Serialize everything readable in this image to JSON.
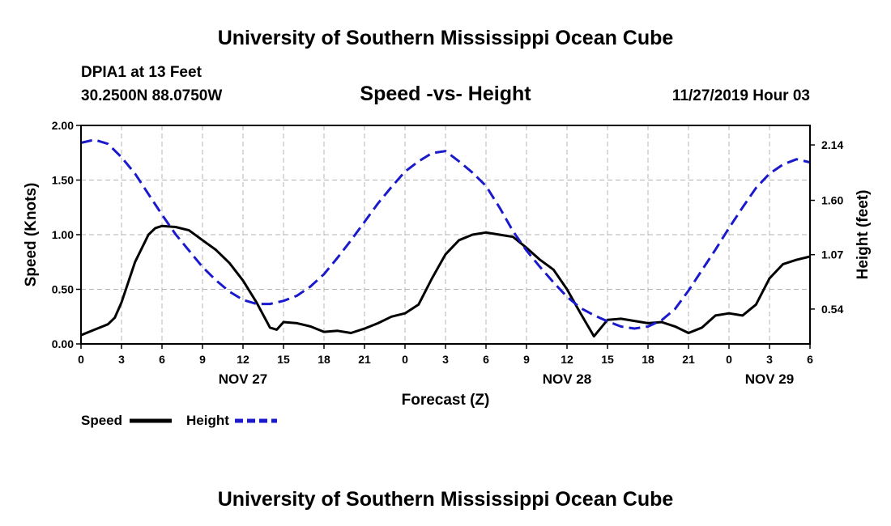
{
  "header": {
    "org_title": "University of Southern Mississippi Ocean Cube",
    "station": "DPIA1 at 13 Feet",
    "coords": "30.2500N 88.0750W",
    "chart_title": "Speed -vs- Height",
    "date_hour": "11/27/2019 Hour 03"
  },
  "footer": {
    "org_title": "University of Southern Mississippi Ocean Cube"
  },
  "colors": {
    "speed": "#000000",
    "height": "#1a1acc",
    "grid": "#b4b4b4"
  },
  "chart_data": {
    "type": "line",
    "title": "Speed -vs- Height",
    "xlabel": "Forecast (Z)",
    "ylabel": "Speed (Knots)",
    "y2label": "Height (feet)",
    "x_unit": "forecast hours",
    "xlim": [
      0,
      54
    ],
    "ylim": [
      0,
      2
    ],
    "y2lim": [
      0.2,
      2.33
    ],
    "x_ticks": [
      0,
      3,
      6,
      9,
      12,
      15,
      18,
      21,
      24,
      27,
      30,
      33,
      36,
      39,
      42,
      45,
      48,
      51,
      54
    ],
    "x_tick_labels": [
      "0",
      "3",
      "6",
      "9",
      "12",
      "15",
      "18",
      "21",
      "0",
      "3",
      "6",
      "9",
      "12",
      "15",
      "18",
      "21",
      "0",
      "3",
      "6"
    ],
    "y_ticks": [
      0,
      0.5,
      1.0,
      1.5,
      2.0
    ],
    "y_tick_labels": [
      "0.00",
      "0.50",
      "1.00",
      "1.50",
      "2.00"
    ],
    "y2_ticks": [
      0.54,
      1.07,
      1.6,
      2.14
    ],
    "y2_tick_labels": [
      "0.54",
      "1.07",
      "1.60",
      "2.14"
    ],
    "date_labels": [
      {
        "x": 12,
        "label": "NOV 27"
      },
      {
        "x": 36,
        "label": "NOV 28"
      },
      {
        "x": 51,
        "label": "NOV 29"
      }
    ],
    "legend": [
      {
        "name": "Speed",
        "style": "solid"
      },
      {
        "name": "Height",
        "style": "dashed"
      }
    ],
    "series": [
      {
        "name": "Speed",
        "axis": "left",
        "x": [
          0,
          1,
          2,
          2.5,
          3,
          4,
          5,
          5.5,
          6,
          7,
          8,
          9,
          10,
          11,
          12,
          13,
          14,
          14.5,
          15,
          16,
          17,
          18,
          19,
          20,
          21,
          22,
          23,
          24,
          25,
          26,
          27,
          28,
          29,
          30,
          31,
          32,
          33,
          34,
          35,
          36,
          37,
          38,
          39,
          40,
          41,
          42,
          43,
          44,
          45,
          46,
          47,
          48,
          49,
          50,
          51,
          52,
          53,
          54
        ],
        "y": [
          0.08,
          0.13,
          0.18,
          0.24,
          0.38,
          0.75,
          1.0,
          1.06,
          1.08,
          1.07,
          1.04,
          0.95,
          0.86,
          0.74,
          0.58,
          0.38,
          0.15,
          0.13,
          0.2,
          0.19,
          0.16,
          0.11,
          0.12,
          0.1,
          0.14,
          0.19,
          0.25,
          0.28,
          0.36,
          0.6,
          0.82,
          0.95,
          1.0,
          1.02,
          1.0,
          0.98,
          0.88,
          0.77,
          0.68,
          0.5,
          0.28,
          0.07,
          0.22,
          0.23,
          0.21,
          0.19,
          0.2,
          0.16,
          0.1,
          0.15,
          0.26,
          0.28,
          0.26,
          0.36,
          0.6,
          0.73,
          0.77,
          0.8
        ]
      },
      {
        "name": "Height",
        "axis": "right",
        "x": [
          0,
          1,
          2,
          3,
          4,
          5,
          6,
          7,
          8,
          9,
          10,
          11,
          12,
          13,
          14,
          15,
          16,
          17,
          18,
          19,
          20,
          21,
          22,
          23,
          24,
          25,
          26,
          27,
          28,
          29,
          30,
          31,
          32,
          33,
          34,
          35,
          36,
          37,
          38,
          39,
          40,
          41,
          42,
          43,
          44,
          45,
          46,
          47,
          48,
          49,
          50,
          51,
          52,
          53,
          54
        ],
        "y": [
          2.16,
          2.19,
          2.15,
          2.02,
          1.86,
          1.66,
          1.46,
          1.27,
          1.11,
          0.95,
          0.82,
          0.71,
          0.63,
          0.59,
          0.59,
          0.62,
          0.67,
          0.76,
          0.88,
          1.04,
          1.21,
          1.39,
          1.57,
          1.73,
          1.88,
          1.98,
          2.06,
          2.08,
          1.98,
          1.87,
          1.74,
          1.53,
          1.3,
          1.11,
          0.95,
          0.8,
          0.66,
          0.55,
          0.48,
          0.42,
          0.37,
          0.35,
          0.37,
          0.43,
          0.54,
          0.72,
          0.92,
          1.12,
          1.33,
          1.53,
          1.72,
          1.86,
          1.95,
          2.0,
          1.97
        ]
      }
    ]
  }
}
